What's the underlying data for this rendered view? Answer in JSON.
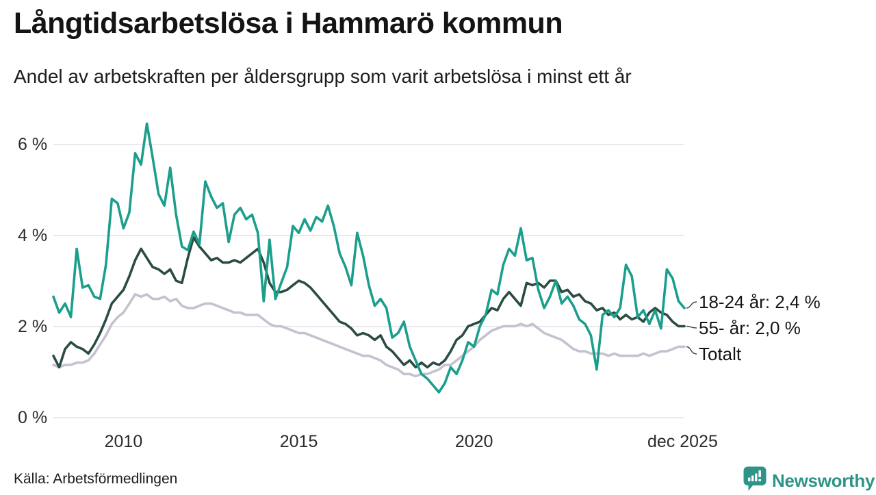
{
  "header": {
    "title": "Långtidsarbetslösa i Hammarö kommun",
    "subtitle": "Andel av arbetskraften per åldersgrupp som varit arbetslösa i minst ett år"
  },
  "footer": {
    "source": "Källa: Arbetsförmedlingen",
    "brand": "Newsworthy"
  },
  "colors": {
    "series_18_24": "#1b9e8c",
    "series_55": "#2b4c42",
    "series_total": "#c4c2d0",
    "grid": "#e9e8ee",
    "leader": "#3a3a3a",
    "brand": "#2f9488",
    "text": "#141414"
  },
  "chart_data": {
    "type": "line",
    "title": "Långtidsarbetslösa i Hammarö kommun",
    "subtitle": "Andel av arbetskraften per åldersgrupp som varit arbetslösa i minst ett år",
    "unit": "% av arbetskraften",
    "grid": "horizontal",
    "legend_position": "right-end-labels",
    "start_year": 2008,
    "points_per_year": 6,
    "x_axis": {
      "ticks": [
        {
          "label": "2010",
          "year": 2010
        },
        {
          "label": "2015",
          "year": 2015
        },
        {
          "label": "2020",
          "year": 2020
        },
        {
          "label": "dec 2025",
          "year": 2025.95
        }
      ]
    },
    "y_axis": {
      "ticks": [
        {
          "label": "0 %",
          "value": 0
        },
        {
          "label": "2 %",
          "value": 2
        },
        {
          "label": "4 %",
          "value": 4
        },
        {
          "label": "6 %",
          "value": 6
        }
      ],
      "range": [
        0,
        6.6
      ]
    },
    "series": [
      {
        "name": "18-24 år",
        "label": "18-24 år: 2,4 %",
        "last_value": "2,4 %",
        "color": "#1b9e8c",
        "values": [
          2.65,
          2.3,
          2.5,
          2.2,
          3.7,
          2.85,
          2.9,
          2.65,
          2.6,
          3.35,
          4.8,
          4.7,
          4.15,
          4.5,
          5.8,
          5.55,
          6.45,
          5.7,
          4.9,
          4.65,
          5.48,
          4.45,
          3.75,
          3.67,
          4.08,
          3.8,
          5.18,
          4.85,
          4.6,
          4.7,
          3.85,
          4.45,
          4.6,
          4.35,
          4.45,
          4.05,
          2.55,
          3.9,
          2.6,
          2.95,
          3.3,
          4.2,
          4.05,
          4.35,
          4.1,
          4.4,
          4.3,
          4.65,
          4.2,
          3.6,
          3.3,
          2.9,
          4.05,
          3.55,
          2.9,
          2.45,
          2.6,
          2.4,
          1.75,
          1.85,
          2.1,
          1.55,
          1.25,
          0.95,
          0.85,
          0.7,
          0.55,
          0.75,
          1.1,
          0.95,
          1.25,
          1.65,
          1.55,
          2.0,
          2.25,
          2.8,
          2.7,
          3.35,
          3.7,
          3.55,
          4.15,
          3.45,
          3.5,
          2.8,
          2.4,
          2.65,
          3.0,
          2.5,
          2.65,
          2.45,
          2.15,
          2.05,
          1.8,
          1.05,
          2.25,
          2.35,
          2.2,
          2.4,
          3.35,
          3.1,
          2.2,
          2.35,
          2.05,
          2.35,
          1.95,
          3.25,
          3.05,
          2.55,
          2.4
        ]
      },
      {
        "name": "55- år",
        "label": "55- år: 2,0 %",
        "last_value": "2,0 %",
        "color": "#2b4c42",
        "values": [
          1.35,
          1.1,
          1.5,
          1.65,
          1.55,
          1.5,
          1.4,
          1.6,
          1.85,
          2.15,
          2.5,
          2.65,
          2.8,
          3.1,
          3.45,
          3.7,
          3.5,
          3.3,
          3.25,
          3.15,
          3.25,
          3.0,
          2.95,
          3.5,
          3.95,
          3.75,
          3.6,
          3.45,
          3.5,
          3.4,
          3.4,
          3.45,
          3.4,
          3.5,
          3.6,
          3.7,
          3.4,
          2.95,
          2.75,
          2.75,
          2.8,
          2.9,
          3.0,
          2.95,
          2.85,
          2.7,
          2.55,
          2.4,
          2.25,
          2.1,
          2.05,
          1.95,
          1.8,
          1.85,
          1.8,
          1.7,
          1.8,
          1.55,
          1.45,
          1.3,
          1.15,
          1.25,
          1.1,
          1.2,
          1.1,
          1.2,
          1.15,
          1.25,
          1.45,
          1.7,
          1.8,
          2.0,
          2.05,
          2.1,
          2.25,
          2.4,
          2.35,
          2.6,
          2.75,
          2.6,
          2.45,
          2.95,
          2.9,
          2.95,
          2.85,
          3.0,
          3.0,
          2.75,
          2.8,
          2.65,
          2.7,
          2.55,
          2.5,
          2.35,
          2.4,
          2.25,
          2.3,
          2.15,
          2.25,
          2.15,
          2.2,
          2.1,
          2.3,
          2.4,
          2.3,
          2.25,
          2.1,
          2.0,
          2.0
        ]
      },
      {
        "name": "Totalt",
        "label": "Totalt",
        "color": "#c4c2d0",
        "values": [
          1.15,
          1.1,
          1.15,
          1.15,
          1.2,
          1.2,
          1.25,
          1.4,
          1.6,
          1.8,
          2.05,
          2.2,
          2.3,
          2.5,
          2.7,
          2.65,
          2.7,
          2.6,
          2.6,
          2.65,
          2.55,
          2.6,
          2.45,
          2.4,
          2.4,
          2.45,
          2.5,
          2.5,
          2.45,
          2.4,
          2.35,
          2.3,
          2.3,
          2.25,
          2.25,
          2.25,
          2.15,
          2.05,
          2.0,
          2.0,
          1.95,
          1.9,
          1.85,
          1.85,
          1.8,
          1.75,
          1.7,
          1.65,
          1.6,
          1.55,
          1.5,
          1.45,
          1.4,
          1.35,
          1.35,
          1.3,
          1.25,
          1.15,
          1.1,
          1.05,
          0.95,
          0.95,
          0.9,
          0.95,
          0.95,
          1.0,
          1.05,
          1.15,
          1.15,
          1.25,
          1.35,
          1.45,
          1.55,
          1.7,
          1.8,
          1.9,
          1.95,
          2.0,
          2.0,
          2.0,
          2.05,
          2.0,
          2.05,
          1.95,
          1.85,
          1.8,
          1.75,
          1.7,
          1.6,
          1.5,
          1.45,
          1.45,
          1.4,
          1.4,
          1.4,
          1.35,
          1.4,
          1.35,
          1.35,
          1.35,
          1.35,
          1.4,
          1.35,
          1.4,
          1.45,
          1.45,
          1.5,
          1.55,
          1.55
        ]
      }
    ]
  }
}
